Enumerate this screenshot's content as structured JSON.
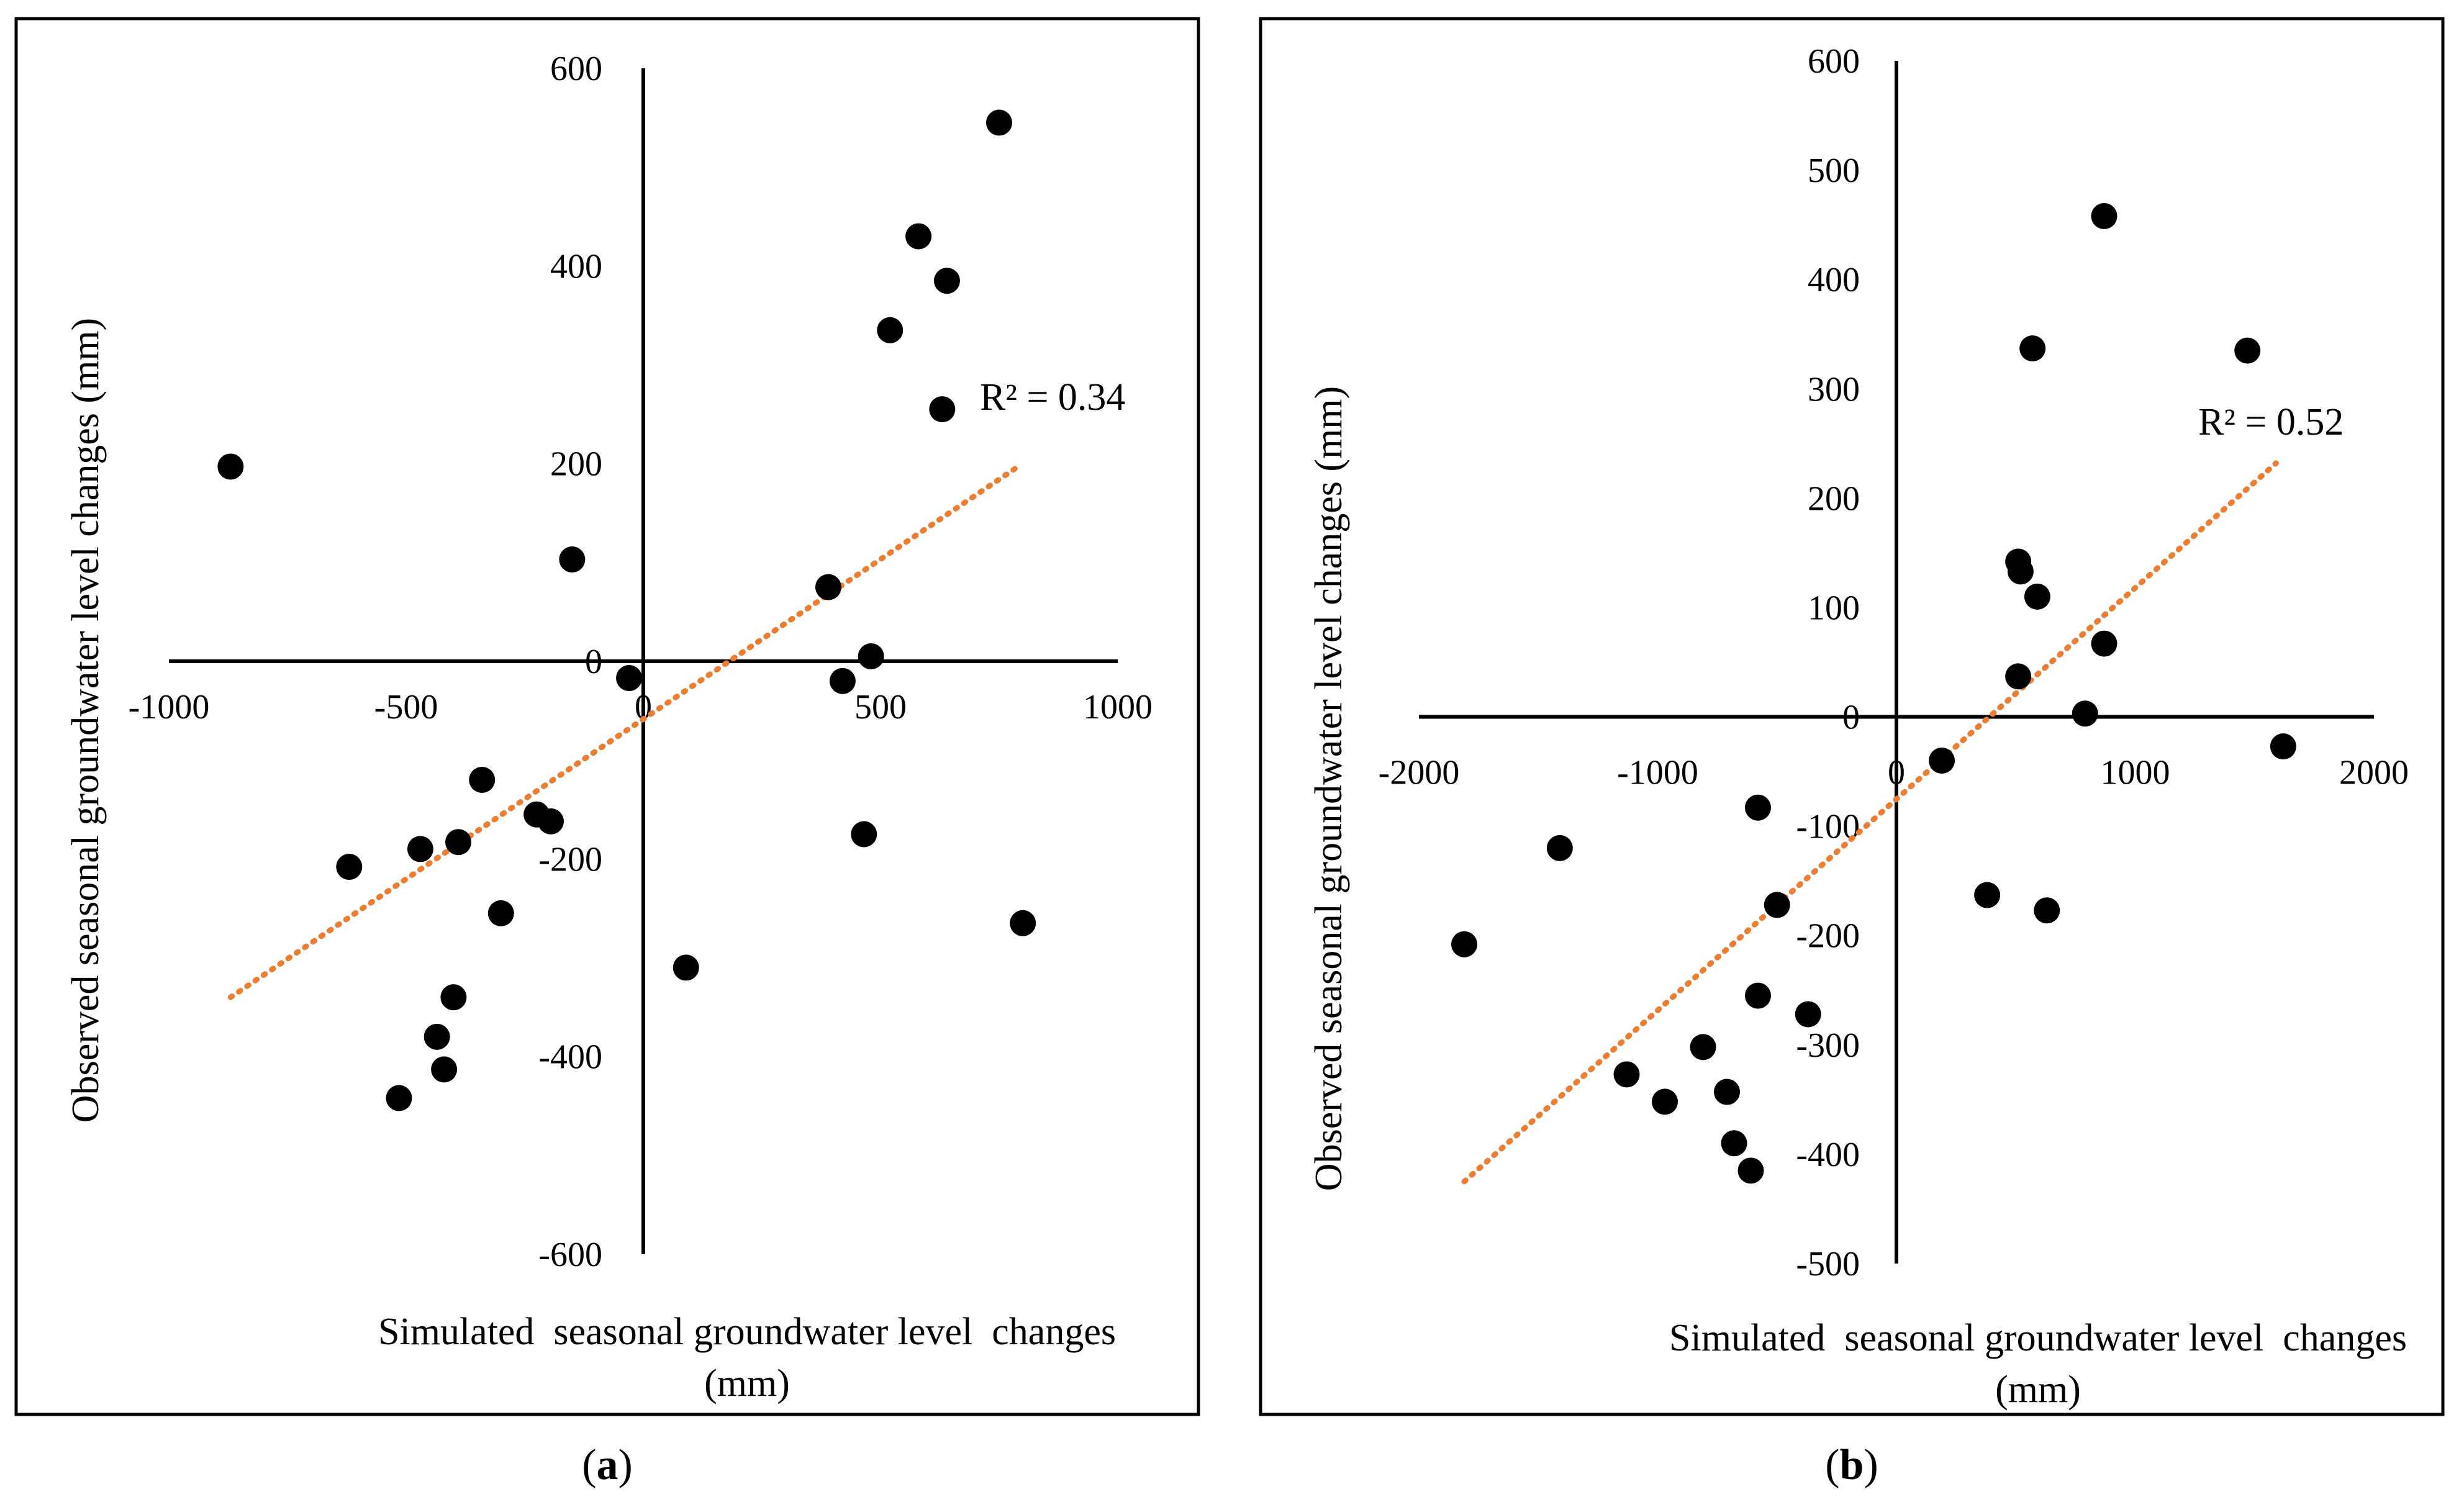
{
  "chart_data": [
    {
      "panel": "a",
      "caption_open": "(",
      "caption_letter": "a",
      "caption_close": ")",
      "type": "scatter",
      "xlabel_line1": "Simulated  seasonal groundwater level  changes",
      "xlabel_line2": "(mm)",
      "ylabel": "Observed seasonal groundwater level changes (mm)",
      "xlim": [
        -1000,
        1000
      ],
      "ylim": [
        -600,
        600
      ],
      "xticks": [
        -1000,
        -500,
        0,
        500,
        1000
      ],
      "yticks": [
        -600,
        -400,
        -200,
        0,
        200,
        400,
        600
      ],
      "annotation": "R² = 0.34",
      "colors": {
        "points": "#000000",
        "trendline": "#ED7D31",
        "frame": "#000000"
      },
      "points": [
        {
          "x": -870,
          "y": 197
        },
        {
          "x": -150,
          "y": 103
        },
        {
          "x": -30,
          "y": -17
        },
        {
          "x": 390,
          "y": 75
        },
        {
          "x": 480,
          "y": 5
        },
        {
          "x": 420,
          "y": -20
        },
        {
          "x": 520,
          "y": 335
        },
        {
          "x": 580,
          "y": 430
        },
        {
          "x": 640,
          "y": 385
        },
        {
          "x": 630,
          "y": 255
        },
        {
          "x": 750,
          "y": 545
        },
        {
          "x": 465,
          "y": -175
        },
        {
          "x": 800,
          "y": -265
        },
        {
          "x": 90,
          "y": -310
        },
        {
          "x": -340,
          "y": -120
        },
        {
          "x": -620,
          "y": -208
        },
        {
          "x": -470,
          "y": -190
        },
        {
          "x": -390,
          "y": -183
        },
        {
          "x": -225,
          "y": -155
        },
        {
          "x": -195,
          "y": -162
        },
        {
          "x": -300,
          "y": -255
        },
        {
          "x": -400,
          "y": -340
        },
        {
          "x": -435,
          "y": -380
        },
        {
          "x": -420,
          "y": -413
        },
        {
          "x": -515,
          "y": -442
        }
      ],
      "trendline": {
        "x_start": -870,
        "y_start": -340,
        "x_end": 790,
        "y_end": 197
      }
    },
    {
      "panel": "b",
      "caption_open": "(",
      "caption_letter": "b",
      "caption_close": ")",
      "type": "scatter",
      "xlabel_line1": "Simulated  seasonal groundwater level  changes",
      "xlabel_line2": "(mm)",
      "ylabel": "Observed seasonal groundwater level changes (mm)",
      "xlim": [
        -2000,
        2000
      ],
      "ylim": [
        -500,
        600
      ],
      "xticks": [
        -2000,
        -1000,
        0,
        1000,
        2000
      ],
      "yticks": [
        -500,
        -400,
        -300,
        -200,
        -100,
        0,
        100,
        200,
        300,
        400,
        500,
        600
      ],
      "annotation": "R² = 0.52",
      "colors": {
        "points": "#000000",
        "trendline": "#ED7D31",
        "frame": "#000000"
      },
      "points": [
        {
          "x": 870,
          "y": 458
        },
        {
          "x": 570,
          "y": 337
        },
        {
          "x": 1470,
          "y": 335
        },
        {
          "x": 510,
          "y": 142
        },
        {
          "x": 520,
          "y": 133
        },
        {
          "x": 590,
          "y": 110
        },
        {
          "x": 870,
          "y": 67
        },
        {
          "x": 510,
          "y": 37
        },
        {
          "x": 790,
          "y": 3
        },
        {
          "x": 1620,
          "y": -27
        },
        {
          "x": 190,
          "y": -40
        },
        {
          "x": -580,
          "y": -83
        },
        {
          "x": -1410,
          "y": -120
        },
        {
          "x": -500,
          "y": -172
        },
        {
          "x": 380,
          "y": -163
        },
        {
          "x": 630,
          "y": -177
        },
        {
          "x": -1810,
          "y": -208
        },
        {
          "x": -580,
          "y": -255
        },
        {
          "x": -370,
          "y": -272
        },
        {
          "x": -810,
          "y": -302
        },
        {
          "x": -1130,
          "y": -327
        },
        {
          "x": -970,
          "y": -352
        },
        {
          "x": -710,
          "y": -343
        },
        {
          "x": -680,
          "y": -390
        },
        {
          "x": -610,
          "y": -415
        }
      ],
      "trendline": {
        "x_start": -1810,
        "y_start": -425,
        "x_end": 1590,
        "y_end": 232
      }
    }
  ]
}
